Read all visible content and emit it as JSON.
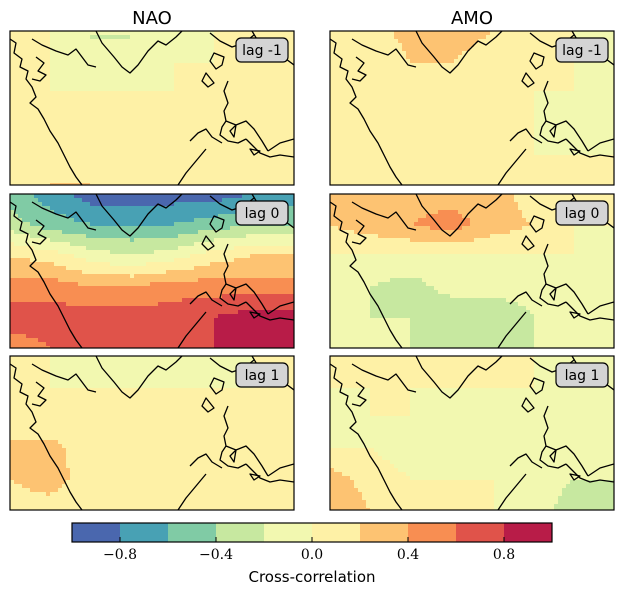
{
  "chart_data": {
    "type": "heatmap",
    "columns": [
      "NAO",
      "AMO"
    ],
    "panels": [
      {
        "column": "NAO",
        "lag_label": "lag -1",
        "field": "nao_lag_m1"
      },
      {
        "column": "AMO",
        "lag_label": "lag -1",
        "field": "amo_lag_m1"
      },
      {
        "column": "NAO",
        "lag_label": "lag 0",
        "field": "nao_lag_0"
      },
      {
        "column": "AMO",
        "lag_label": "lag 0",
        "field": "amo_lag_0"
      },
      {
        "column": "NAO",
        "lag_label": "lag 1",
        "field": "nao_lag_1"
      },
      {
        "column": "AMO",
        "lag_label": "lag 1",
        "field": "amo_lag_1"
      }
    ],
    "colorbar": {
      "label": "Cross-correlation",
      "range": [
        -1.0,
        1.0
      ],
      "levels": [
        -1.0,
        -0.8,
        -0.6,
        -0.4,
        -0.2,
        0.0,
        0.2,
        0.4,
        0.6,
        0.8,
        1.0
      ],
      "colors": [
        "#4a67ae",
        "#48a1b4",
        "#80cba5",
        "#c7e8a0",
        "#f2f8b0",
        "#fef1a6",
        "#fdc372",
        "#f88e52",
        "#e0534a",
        "#b81c48"
      ],
      "ticks": [
        -0.8,
        -0.4,
        0.0,
        0.4,
        0.8
      ],
      "tick_labels": [
        "−0.8",
        "−0.4",
        "0.0",
        "0.4",
        "0.8"
      ]
    },
    "approx_fields": {
      "nao_lag_m1": [
        [
          0.1,
          0.0,
          -0.2,
          -0.2,
          -0.2,
          0.0,
          0.1,
          0.0
        ],
        [
          0.0,
          0.0,
          -0.2,
          -0.2,
          0.0,
          0.0,
          0.0,
          0.0
        ],
        [
          0.0,
          0.0,
          0.0,
          0.0,
          0.0,
          0.0,
          0.0,
          0.1
        ],
        [
          0.0,
          0.0,
          0.0,
          0.0,
          0.0,
          0.1,
          0.2,
          0.1
        ],
        [
          0.1,
          0.2,
          0.1,
          0.0,
          0.0,
          0.0,
          0.1,
          0.1
        ],
        [
          0.1,
          0.2,
          0.2,
          0.0,
          0.0,
          0.0,
          0.0,
          0.0
        ]
      ],
      "amo_lag_m1": [
        [
          0.0,
          0.1,
          0.3,
          0.3,
          0.2,
          0.0,
          0.0,
          0.0
        ],
        [
          0.0,
          0.0,
          0.2,
          0.2,
          0.1,
          0.0,
          0.0,
          -0.1
        ],
        [
          0.0,
          0.0,
          0.0,
          0.0,
          0.0,
          0.0,
          0.0,
          -0.1
        ],
        [
          0.0,
          0.0,
          0.0,
          0.0,
          0.0,
          0.0,
          -0.1,
          -0.2
        ],
        [
          0.0,
          0.0,
          0.0,
          0.1,
          0.0,
          0.0,
          0.0,
          0.0
        ],
        [
          0.0,
          0.0,
          0.0,
          0.1,
          0.0,
          0.0,
          0.0,
          0.0
        ]
      ],
      "nao_lag_0": [
        [
          -0.5,
          -0.7,
          -0.9,
          -0.9,
          -0.9,
          -0.9,
          -0.8,
          -0.7
        ],
        [
          -0.3,
          -0.5,
          -0.6,
          -0.6,
          -0.6,
          -0.5,
          -0.4,
          -0.4
        ],
        [
          0.2,
          0.1,
          -0.1,
          -0.2,
          -0.1,
          0.1,
          0.2,
          0.2
        ],
        [
          0.5,
          0.5,
          0.4,
          0.4,
          0.5,
          0.5,
          0.5,
          0.5
        ],
        [
          0.7,
          0.7,
          0.7,
          0.7,
          0.7,
          0.8,
          0.9,
          0.9
        ],
        [
          0.5,
          0.6,
          0.7,
          0.7,
          0.7,
          0.8,
          0.9,
          0.9
        ]
      ],
      "amo_lag_0": [
        [
          0.3,
          0.3,
          0.3,
          0.3,
          0.3,
          0.1,
          0.0,
          0.0
        ],
        [
          0.2,
          0.3,
          0.4,
          0.5,
          0.3,
          0.2,
          0.0,
          0.0
        ],
        [
          0.0,
          0.0,
          0.0,
          0.0,
          0.0,
          0.0,
          0.0,
          -0.1
        ],
        [
          -0.2,
          -0.2,
          -0.3,
          -0.1,
          -0.1,
          -0.1,
          -0.1,
          -0.2
        ],
        [
          -0.2,
          -0.2,
          -0.2,
          -0.4,
          -0.4,
          -0.2,
          -0.2,
          -0.1
        ],
        [
          -0.1,
          -0.2,
          -0.2,
          -0.4,
          -0.3,
          -0.2,
          -0.1,
          -0.1
        ]
      ],
      "nao_lag_1": [
        [
          0.0,
          0.0,
          -0.2,
          -0.2,
          -0.2,
          -0.2,
          0.0,
          0.0
        ],
        [
          0.0,
          0.0,
          0.0,
          0.0,
          0.0,
          0.0,
          0.0,
          0.0
        ],
        [
          0.2,
          0.0,
          0.0,
          0.0,
          0.0,
          0.0,
          0.0,
          0.0
        ],
        [
          0.2,
          0.3,
          0.0,
          0.0,
          0.0,
          0.0,
          0.0,
          0.0
        ],
        [
          0.2,
          0.3,
          0.1,
          0.0,
          0.0,
          0.0,
          0.0,
          0.0
        ],
        [
          0.1,
          0.1,
          0.0,
          0.0,
          0.0,
          0.0,
          0.0,
          0.0
        ]
      ],
      "amo_lag_1": [
        [
          0.2,
          0.1,
          0.0,
          0.0,
          0.2,
          0.0,
          0.0,
          0.0
        ],
        [
          0.0,
          0.0,
          0.0,
          0.0,
          0.0,
          0.0,
          -0.1,
          -0.2
        ],
        [
          -0.1,
          0.0,
          0.0,
          -0.1,
          -0.1,
          -0.2,
          -0.2,
          -0.2
        ],
        [
          0.0,
          0.0,
          -0.1,
          -0.1,
          -0.1,
          -0.1,
          -0.2,
          -0.2
        ],
        [
          0.3,
          0.1,
          0.0,
          0.0,
          0.0,
          -0.1,
          -0.2,
          -0.2
        ],
        [
          0.4,
          0.2,
          0.0,
          0.0,
          0.0,
          -0.1,
          -0.3,
          -0.3
        ]
      ]
    }
  }
}
